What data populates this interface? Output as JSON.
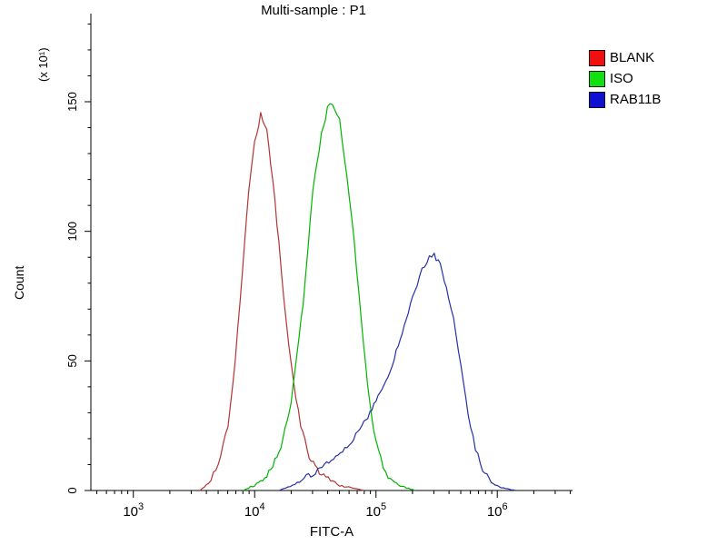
{
  "chart_data": {
    "type": "line",
    "title": "Multi-sample : P1",
    "xlabel": "FITC-A",
    "ylabel": "Count",
    "y_unit_label": "(x 10¹)",
    "x_scale": "log10",
    "xlim_log": [
      2.65,
      6.62
    ],
    "ylim": [
      0,
      184
    ],
    "yticks": [
      0,
      50,
      100,
      150
    ],
    "ytick_minor_step": 10,
    "xticks_exp": [
      3,
      4,
      5,
      6
    ],
    "grid": false,
    "legend_position": "top-right",
    "series": [
      {
        "name": "BLANK",
        "color": "#f01010",
        "curve_color": "#b43434",
        "log10_x": [
          3.55,
          3.62,
          3.7,
          3.78,
          3.84,
          3.9,
          3.95,
          4.0,
          4.05,
          4.1,
          4.15,
          4.2,
          4.26,
          4.32,
          4.38,
          4.45,
          4.55,
          4.7,
          4.9
        ],
        "count": [
          0,
          3,
          10,
          25,
          50,
          85,
          115,
          135,
          145,
          139,
          120,
          95,
          65,
          42,
          25,
          13,
          6,
          2,
          0
        ]
      },
      {
        "name": "ISO",
        "color": "#10e010",
        "curve_color": "#00b400",
        "log10_x": [
          3.9,
          4.0,
          4.1,
          4.2,
          4.3,
          4.4,
          4.48,
          4.55,
          4.6,
          4.64,
          4.7,
          4.76,
          4.82,
          4.88,
          4.93,
          4.98,
          5.04,
          5.1,
          5.2,
          5.32
        ],
        "count": [
          0,
          2,
          6,
          14,
          34,
          72,
          115,
          138,
          147,
          150,
          143,
          122,
          96,
          66,
          42,
          24,
          12,
          5,
          2,
          0
        ]
      },
      {
        "name": "RAB11B",
        "color": "#1010d0",
        "curve_color": "#2630a8",
        "log10_x": [
          4.2,
          4.35,
          4.5,
          4.65,
          4.8,
          4.9,
          5.0,
          5.1,
          5.2,
          5.3,
          5.38,
          5.44,
          5.48,
          5.53,
          5.58,
          5.64,
          5.7,
          5.76,
          5.82,
          5.88,
          5.95,
          6.05,
          6.15
        ],
        "count": [
          0,
          3,
          7,
          12,
          19,
          26,
          34,
          44,
          58,
          74,
          85,
          90,
          91,
          87,
          79,
          66,
          48,
          30,
          16,
          8,
          3,
          1,
          0
        ]
      }
    ]
  }
}
